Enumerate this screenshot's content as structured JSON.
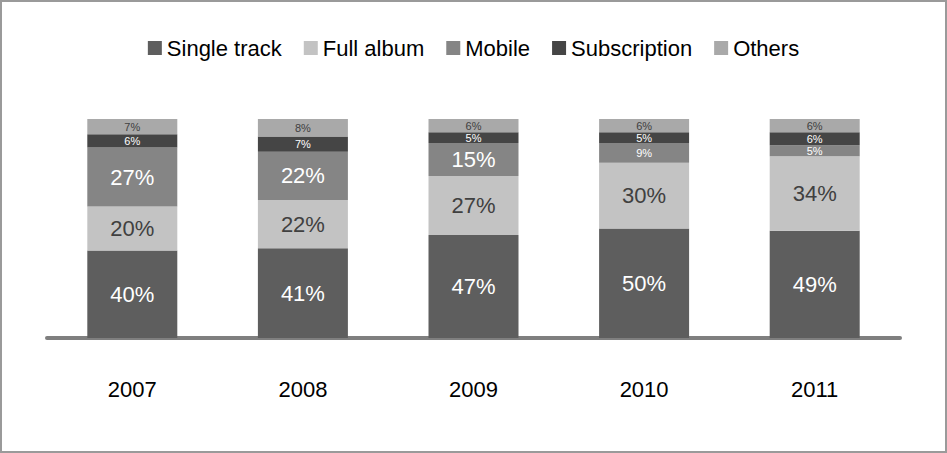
{
  "chart_data": {
    "type": "bar",
    "stacked": true,
    "data_labels": true,
    "tick_labels": "x",
    "grid": false,
    "legend": "top",
    "categories": [
      "2007",
      "2008",
      "2009",
      "2010",
      "2011"
    ],
    "ylim": [
      0,
      100
    ],
    "series": [
      {
        "name": "Single track",
        "color": "#5e5e5e",
        "values": [
          40,
          41,
          47,
          50,
          49
        ],
        "value_labels": [
          "40%",
          "41%",
          "47%",
          "50%",
          "49%"
        ]
      },
      {
        "name": "Full album",
        "color": "#c3c3c3",
        "values": [
          20,
          22,
          27,
          30,
          34
        ],
        "value_labels": [
          "20%",
          "22%",
          "27%",
          "30%",
          "34%"
        ]
      },
      {
        "name": "Mobile",
        "color": "#858585",
        "values": [
          27,
          22,
          15,
          9,
          5
        ],
        "value_labels": [
          "27%",
          "22%",
          "15%",
          "9%",
          "5%"
        ]
      },
      {
        "name": "Subscription",
        "color": "#454545",
        "values": [
          6,
          7,
          5,
          5,
          6
        ],
        "value_labels": [
          "6%",
          "7%",
          "5%",
          "5%",
          "6%"
        ]
      },
      {
        "name": "Others",
        "color": "#a9a9a9",
        "values": [
          7,
          8,
          6,
          6,
          6
        ],
        "value_labels": [
          "7%",
          "8%",
          "6%",
          "6%",
          "6%"
        ]
      }
    ]
  }
}
